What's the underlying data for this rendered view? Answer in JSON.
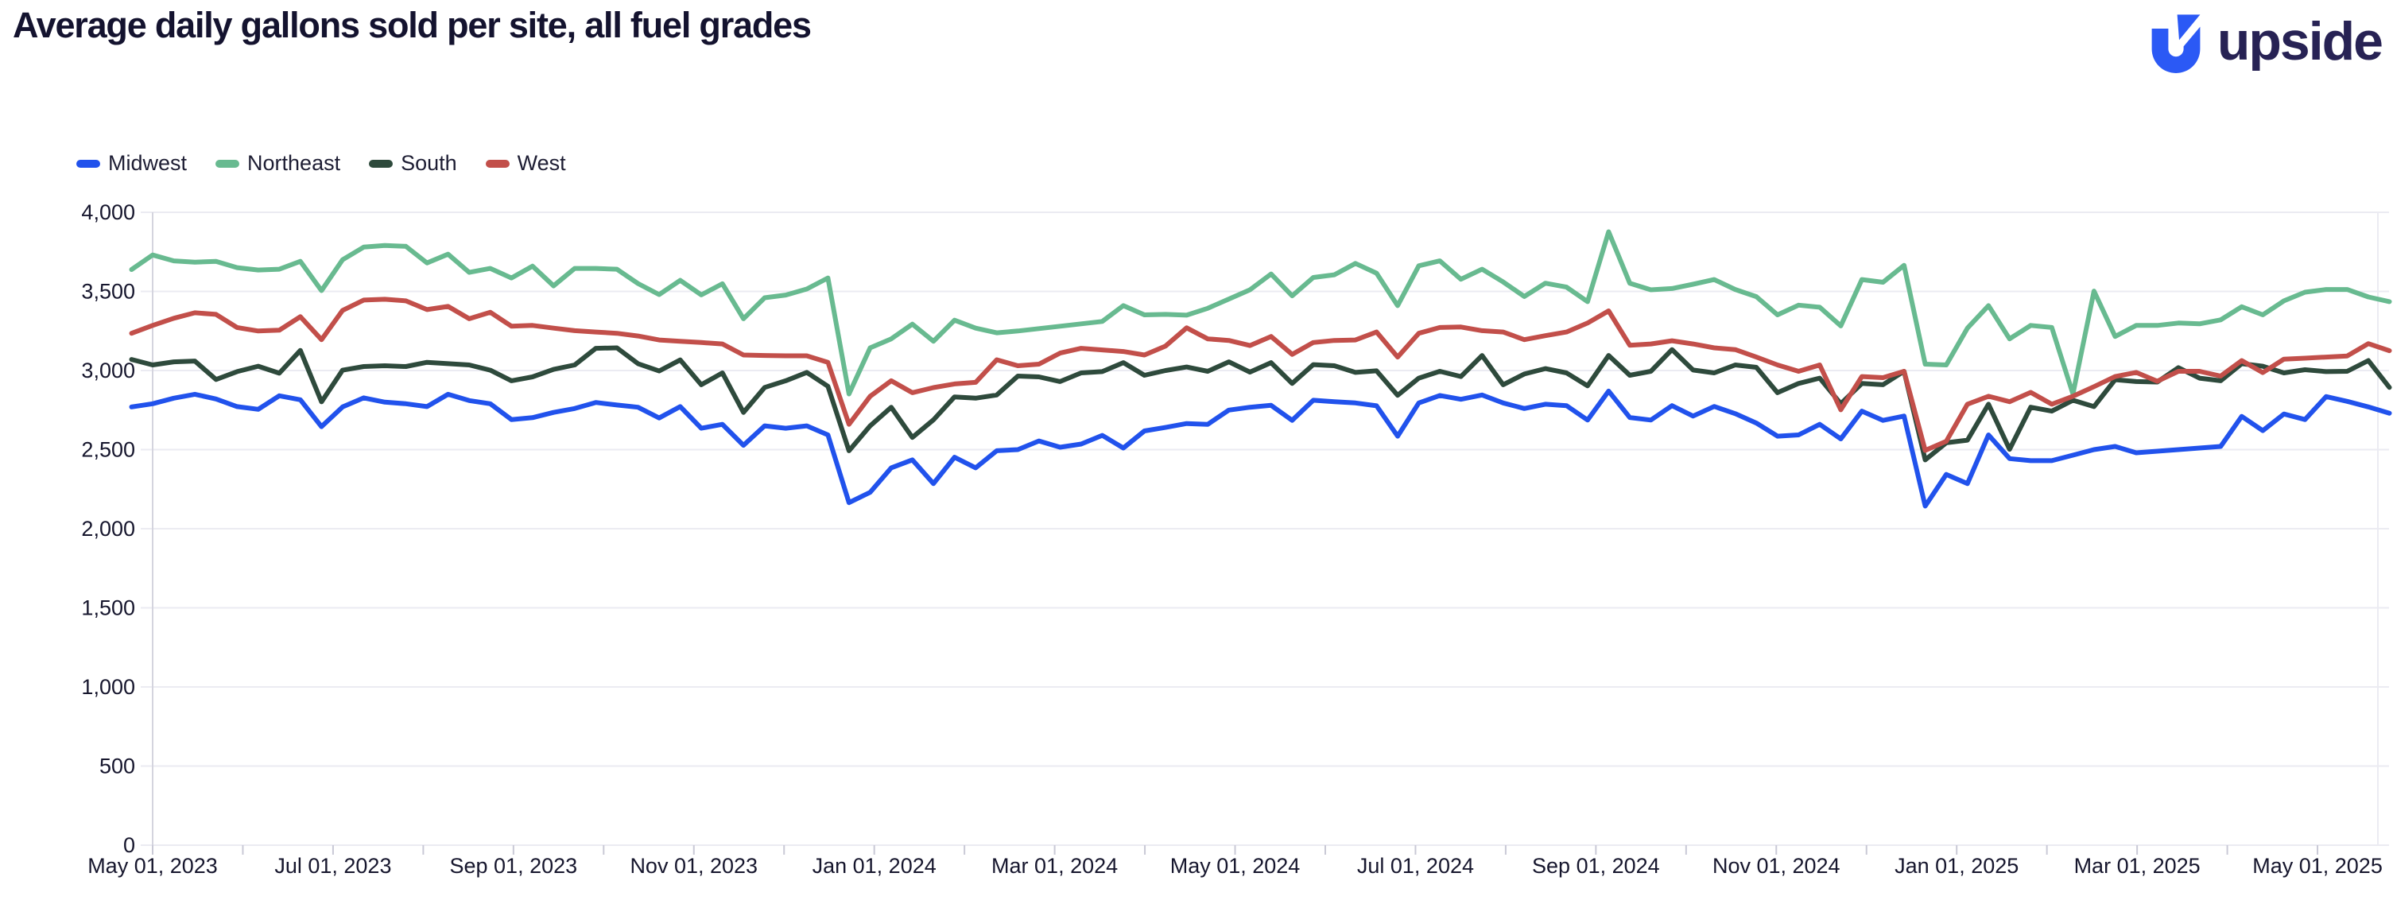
{
  "header": {
    "title": "Average daily gallons sold per site, all fuel grades",
    "brand": "upside",
    "brand_icon_color": "#2b59f5",
    "brand_text_color": "#272254"
  },
  "legend": {
    "items": [
      {
        "label": "Midwest",
        "color": "#2152ec"
      },
      {
        "label": "Northeast",
        "color": "#68ba90"
      },
      {
        "label": "South",
        "color": "#2e4a3c"
      },
      {
        "label": "West",
        "color": "#c24f4a"
      }
    ]
  },
  "chart_data": {
    "type": "line",
    "title": "Average daily gallons sold per site, all fuel grades",
    "xlabel": "",
    "ylabel": "",
    "x_unit": "week",
    "x_start_date": "2023-04-23",
    "x_step_days": 7,
    "n_points": 108,
    "ylim": [
      0,
      4000
    ],
    "grid": "horizontal",
    "legend_position": "top-left",
    "background": "#ffffff",
    "gridline_color": "#ebebf2",
    "axis_text_color": "#16162d",
    "y_ticks": [
      0,
      500,
      1000,
      1500,
      2000,
      2500,
      3000,
      3500,
      4000
    ],
    "y_tick_labels": [
      "0",
      "500",
      "1,000",
      "1,500",
      "2,000",
      "2,500",
      "3,000",
      "3,500",
      "4,000"
    ],
    "x_tick_labels": [
      "May 01, 2023",
      "Jul 01, 2023",
      "Sep 01, 2023",
      "Nov 01, 2023",
      "Jan 01, 2024",
      "Mar 01, 2024",
      "May 01, 2024",
      "Jul 01, 2024",
      "Sep 01, 2024",
      "Nov 01, 2024",
      "Jan 01, 2025",
      "Mar 01, 2025",
      "May 01, 2025"
    ],
    "series": [
      {
        "name": "Midwest",
        "color": "#2152ec",
        "values": [
          2770,
          2790,
          2825,
          2850,
          2820,
          2772,
          2755,
          2840,
          2815,
          2645,
          2770,
          2827,
          2800,
          2790,
          2772,
          2850,
          2810,
          2790,
          2690,
          2702,
          2735,
          2760,
          2798,
          2782,
          2768,
          2700,
          2772,
          2635,
          2660,
          2527,
          2650,
          2635,
          2650,
          2593,
          2165,
          2230,
          2385,
          2435,
          2285,
          2452,
          2385,
          2493,
          2500,
          2555,
          2515,
          2535,
          2590,
          2510,
          2618,
          2640,
          2665,
          2660,
          2750,
          2768,
          2780,
          2685,
          2812,
          2803,
          2795,
          2777,
          2585,
          2795,
          2842,
          2818,
          2845,
          2795,
          2760,
          2787,
          2778,
          2687,
          2870,
          2703,
          2687,
          2778,
          2712,
          2773,
          2727,
          2668,
          2585,
          2593,
          2660,
          2568,
          2743,
          2685,
          2712,
          2143,
          2343,
          2285,
          2593,
          2443,
          2430,
          2430,
          2465,
          2500,
          2520,
          2480,
          2490,
          2500,
          2510,
          2520,
          2710,
          2620,
          2725,
          2690,
          2835,
          2805,
          2770,
          2730
        ]
      },
      {
        "name": "Northeast",
        "color": "#68ba90",
        "values": [
          3638,
          3730,
          3693,
          3685,
          3690,
          3650,
          3635,
          3640,
          3690,
          3505,
          3700,
          3780,
          3790,
          3785,
          3680,
          3735,
          3620,
          3645,
          3585,
          3660,
          3535,
          3645,
          3645,
          3640,
          3550,
          3480,
          3570,
          3478,
          3548,
          3327,
          3460,
          3477,
          3515,
          3585,
          2852,
          3143,
          3200,
          3293,
          3185,
          3318,
          3268,
          3238,
          3250,
          3265,
          3280,
          3295,
          3310,
          3410,
          3352,
          3355,
          3350,
          3393,
          3452,
          3510,
          3610,
          3472,
          3588,
          3605,
          3677,
          3615,
          3410,
          3662,
          3693,
          3577,
          3640,
          3560,
          3468,
          3552,
          3527,
          3435,
          3877,
          3552,
          3510,
          3518,
          3545,
          3575,
          3512,
          3467,
          3352,
          3413,
          3400,
          3282,
          3575,
          3558,
          3665,
          3040,
          3035,
          3268,
          3410,
          3200,
          3285,
          3272,
          2852,
          3502,
          3215,
          3285,
          3285,
          3300,
          3295,
          3320,
          3403,
          3352,
          3440,
          3495,
          3512,
          3512,
          3465,
          3435
        ]
      },
      {
        "name": "South",
        "color": "#2e4a3c",
        "values": [
          3070,
          3035,
          3055,
          3060,
          2943,
          2993,
          3027,
          2983,
          3127,
          2802,
          3002,
          3025,
          3030,
          3025,
          3052,
          3043,
          3035,
          3002,
          2935,
          2960,
          3007,
          3035,
          3140,
          3143,
          3043,
          2997,
          3067,
          2910,
          2985,
          2735,
          2893,
          2935,
          2988,
          2900,
          2493,
          2650,
          2768,
          2577,
          2688,
          2833,
          2825,
          2845,
          2965,
          2960,
          2930,
          2985,
          2993,
          3050,
          2970,
          3000,
          3022,
          2995,
          3055,
          2990,
          3050,
          2918,
          3037,
          3030,
          2988,
          2998,
          2843,
          2952,
          2995,
          2962,
          3095,
          2910,
          2978,
          3012,
          2985,
          2903,
          3095,
          2970,
          2995,
          3132,
          3003,
          2985,
          3035,
          3020,
          2860,
          2918,
          2952,
          2790,
          2918,
          2910,
          2995,
          2435,
          2543,
          2560,
          2787,
          2502,
          2768,
          2743,
          2812,
          2772,
          2942,
          2930,
          2927,
          3018,
          2952,
          2935,
          3043,
          3027,
          2985,
          3005,
          2993,
          2995,
          3063,
          2893
        ]
      },
      {
        "name": "West",
        "color": "#c24f4a",
        "values": [
          3235,
          3285,
          3330,
          3365,
          3355,
          3272,
          3250,
          3255,
          3340,
          3195,
          3380,
          3445,
          3450,
          3440,
          3385,
          3405,
          3327,
          3368,
          3280,
          3285,
          3268,
          3252,
          3243,
          3235,
          3218,
          3193,
          3185,
          3177,
          3168,
          3098,
          3095,
          3093,
          3093,
          3052,
          2660,
          2837,
          2935,
          2860,
          2892,
          2915,
          2925,
          3068,
          3030,
          3040,
          3110,
          3140,
          3130,
          3120,
          3098,
          3155,
          3270,
          3200,
          3190,
          3158,
          3215,
          3102,
          3177,
          3190,
          3193,
          3243,
          3085,
          3235,
          3272,
          3275,
          3252,
          3243,
          3195,
          3220,
          3243,
          3300,
          3377,
          3160,
          3168,
          3188,
          3168,
          3143,
          3132,
          3085,
          3035,
          2995,
          3035,
          2752,
          2962,
          2955,
          2995,
          2495,
          2553,
          2787,
          2837,
          2803,
          2862,
          2787,
          2837,
          2898,
          2962,
          2988,
          2932,
          2995,
          2995,
          2965,
          3063,
          2987,
          3072,
          3078,
          3085,
          3092,
          3170,
          3125
        ]
      }
    ]
  }
}
